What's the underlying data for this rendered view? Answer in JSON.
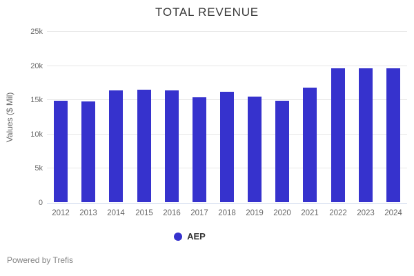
{
  "title": "TOTAL REVENUE",
  "y_axis_title": "Values ($ Mil)",
  "legend": {
    "label": "AEP"
  },
  "footer": "Powered by Trefis",
  "colors": {
    "bar": "#3632cd",
    "grid": "#e6e6e6",
    "axis_line": "#ccd6eb",
    "title_text": "#3a3a3a",
    "axis_text": "#666666",
    "footer_text": "#848484"
  },
  "chart_data": {
    "type": "bar",
    "title": "TOTAL REVENUE",
    "xlabel": "",
    "ylabel": "Values ($ Mil)",
    "categories": [
      "2012",
      "2013",
      "2014",
      "2015",
      "2016",
      "2017",
      "2018",
      "2019",
      "2020",
      "2021",
      "2022",
      "2023",
      "2024"
    ],
    "series": [
      {
        "name": "AEP",
        "values": [
          14800,
          14700,
          16300,
          16450,
          16350,
          15350,
          16100,
          15450,
          14800,
          16700,
          19600,
          19600,
          19600
        ]
      }
    ],
    "ylim": [
      0,
      25000
    ],
    "yticks": [
      0,
      5000,
      10000,
      15000,
      20000,
      25000
    ],
    "ytick_labels": [
      "0",
      "5k",
      "10k",
      "15k",
      "20k",
      "25k"
    ],
    "grid": "horizontal",
    "legend_position": "bottom"
  }
}
